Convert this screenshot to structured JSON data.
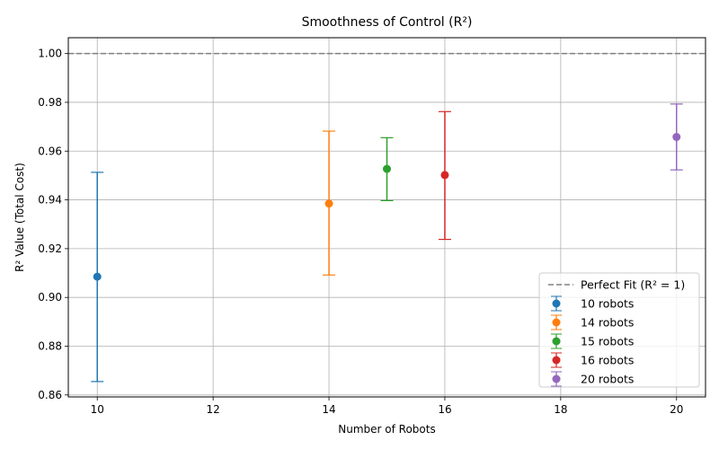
{
  "chart_data": {
    "type": "scatter",
    "title": "Smoothness of Control (R²)",
    "xlabel": "Number of Robots",
    "ylabel": "R² Value (Total Cost)",
    "xlim": [
      9.5,
      20.5
    ],
    "ylim": [
      0.8592,
      1.0065
    ],
    "xticks": [
      10,
      12,
      14,
      16,
      18,
      20
    ],
    "yticks": [
      0.86,
      0.88,
      0.9,
      0.92,
      0.94,
      0.96,
      0.98,
      1.0
    ],
    "xtick_labels": [
      "10",
      "12",
      "14",
      "16",
      "18",
      "20"
    ],
    "ytick_labels": [
      "0.86",
      "0.88",
      "0.90",
      "0.92",
      "0.94",
      "0.96",
      "0.98",
      "1.00"
    ],
    "grid": true,
    "legend_position": "bottom-right",
    "reference_line": {
      "label": "Perfect Fit (R² = 1)",
      "y": 1.0,
      "color": "#808080",
      "style": "dashed"
    },
    "series": [
      {
        "name": "10 robots",
        "x": 10,
        "y": 0.9085,
        "err_low": 0.8655,
        "err_high": 0.9513,
        "color": "#1f77b4"
      },
      {
        "name": "14 robots",
        "x": 14,
        "y": 0.9385,
        "err_low": 0.9092,
        "err_high": 0.9682,
        "color": "#ff7f0e"
      },
      {
        "name": "15 robots",
        "x": 15,
        "y": 0.9527,
        "err_low": 0.9397,
        "err_high": 0.9655,
        "color": "#2ca02c"
      },
      {
        "name": "16 robots",
        "x": 16,
        "y": 0.9502,
        "err_low": 0.9238,
        "err_high": 0.9762,
        "color": "#d62728"
      },
      {
        "name": "20 robots",
        "x": 20,
        "y": 0.9658,
        "err_low": 0.9523,
        "err_high": 0.9793,
        "color": "#9467bd"
      }
    ]
  }
}
